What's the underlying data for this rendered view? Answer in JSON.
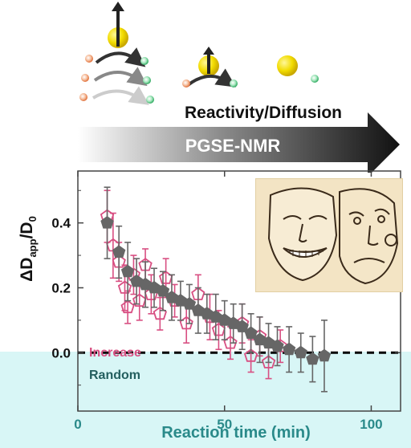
{
  "scheme": {
    "reactivity_label": "Reactivity/Diffusion",
    "method_label": "PGSE-NMR"
  },
  "chart_data": {
    "type": "scatter",
    "xlabel": "Reaction time (min)",
    "ylabel_main": "ΔD",
    "ylabel_sub": "app",
    "ylabel_rest": "/D",
    "ylabel_sub2": "0",
    "xlim": [
      0,
      110
    ],
    "ylim": [
      -0.18,
      0.56
    ],
    "xticks": [
      0,
      50,
      100
    ],
    "yticks": [
      0.0,
      0.2,
      0.4
    ],
    "ytick_labels": [
      "0.0",
      "0.2",
      "0.4"
    ],
    "grid": false,
    "legend_position": "bottom-left",
    "reference_line_y": 0.0,
    "series": [
      {
        "name": "Increase",
        "color": "#d84f82",
        "marker": "open-pentagon",
        "points": [
          {
            "x": 10,
            "y": 0.42,
            "err": 0.08
          },
          {
            "x": 12,
            "y": 0.33,
            "err": 0.1
          },
          {
            "x": 14,
            "y": 0.28,
            "err": 0.06
          },
          {
            "x": 16,
            "y": 0.2,
            "err": 0.07
          },
          {
            "x": 17,
            "y": 0.14,
            "err": 0.05
          },
          {
            "x": 19,
            "y": 0.24,
            "err": 0.06
          },
          {
            "x": 21,
            "y": 0.16,
            "err": 0.06
          },
          {
            "x": 23,
            "y": 0.27,
            "err": 0.05
          },
          {
            "x": 25,
            "y": 0.18,
            "err": 0.06
          },
          {
            "x": 28,
            "y": 0.12,
            "err": 0.05
          },
          {
            "x": 30,
            "y": 0.23,
            "err": 0.06
          },
          {
            "x": 33,
            "y": 0.16,
            "err": 0.05
          },
          {
            "x": 37,
            "y": 0.09,
            "err": 0.06
          },
          {
            "x": 41,
            "y": 0.18,
            "err": 0.06
          },
          {
            "x": 45,
            "y": 0.11,
            "err": 0.07
          },
          {
            "x": 48,
            "y": 0.07,
            "err": 0.06
          },
          {
            "x": 52,
            "y": 0.03,
            "err": 0.05
          },
          {
            "x": 56,
            "y": 0.09,
            "err": 0.06
          },
          {
            "x": 59,
            "y": -0.01,
            "err": 0.05
          },
          {
            "x": 62,
            "y": 0.05,
            "err": 0.06
          },
          {
            "x": 65,
            "y": -0.03,
            "err": 0.05
          },
          {
            "x": 69,
            "y": 0.02,
            "err": 0.05
          }
        ]
      },
      {
        "name": "Random",
        "color": "#666666",
        "marker": "filled-pentagon",
        "points": [
          {
            "x": 10,
            "y": 0.4,
            "err": 0.11
          },
          {
            "x": 14,
            "y": 0.31,
            "err": 0.08
          },
          {
            "x": 17,
            "y": 0.25,
            "err": 0.09
          },
          {
            "x": 20,
            "y": 0.22,
            "err": 0.07
          },
          {
            "x": 23,
            "y": 0.21,
            "err": 0.07
          },
          {
            "x": 26,
            "y": 0.2,
            "err": 0.06
          },
          {
            "x": 29,
            "y": 0.19,
            "err": 0.06
          },
          {
            "x": 32,
            "y": 0.17,
            "err": 0.07
          },
          {
            "x": 35,
            "y": 0.16,
            "err": 0.06
          },
          {
            "x": 38,
            "y": 0.15,
            "err": 0.06
          },
          {
            "x": 41,
            "y": 0.13,
            "err": 0.07
          },
          {
            "x": 44,
            "y": 0.12,
            "err": 0.06
          },
          {
            "x": 47,
            "y": 0.11,
            "err": 0.07
          },
          {
            "x": 50,
            "y": 0.1,
            "err": 0.06
          },
          {
            "x": 53,
            "y": 0.09,
            "err": 0.06
          },
          {
            "x": 56,
            "y": 0.08,
            "err": 0.07
          },
          {
            "x": 59,
            "y": 0.06,
            "err": 0.06
          },
          {
            "x": 62,
            "y": 0.04,
            "err": 0.07
          },
          {
            "x": 65,
            "y": 0.03,
            "err": 0.06
          },
          {
            "x": 68,
            "y": 0.02,
            "err": 0.06
          },
          {
            "x": 72,
            "y": 0.01,
            "err": 0.07
          },
          {
            "x": 76,
            "y": 0.0,
            "err": 0.06
          },
          {
            "x": 80,
            "y": -0.02,
            "err": 0.07
          },
          {
            "x": 84,
            "y": -0.01,
            "err": 0.11
          }
        ]
      }
    ]
  }
}
